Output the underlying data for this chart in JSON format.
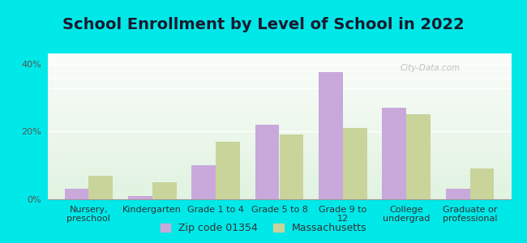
{
  "title": "School Enrollment by Level of School in 2022",
  "categories": [
    "Nursery,\npreschool",
    "Kindergarten",
    "Grade 1 to 4",
    "Grade 5 to 8",
    "Grade 9 to\n12",
    "College\nundergrad",
    "Graduate or\nprofessional"
  ],
  "zip_values": [
    3.0,
    1.0,
    10.0,
    22.0,
    37.5,
    27.0,
    3.0
  ],
  "ma_values": [
    7.0,
    5.0,
    17.0,
    19.0,
    21.0,
    25.0,
    9.0
  ],
  "zip_color": "#c9a8dc",
  "ma_color": "#c8d49a",
  "zip_label": "Zip code 01354",
  "ma_label": "Massachusetts",
  "yticks": [
    0,
    20,
    40
  ],
  "ytick_labels": [
    "0%",
    "20%",
    "40%"
  ],
  "ylim": [
    0,
    43
  ],
  "bg_color": "#00e8e8",
  "title_fontsize": 14,
  "tick_fontsize": 8,
  "legend_fontsize": 9,
  "watermark_text": "City-Data.com",
  "bar_width": 0.38
}
